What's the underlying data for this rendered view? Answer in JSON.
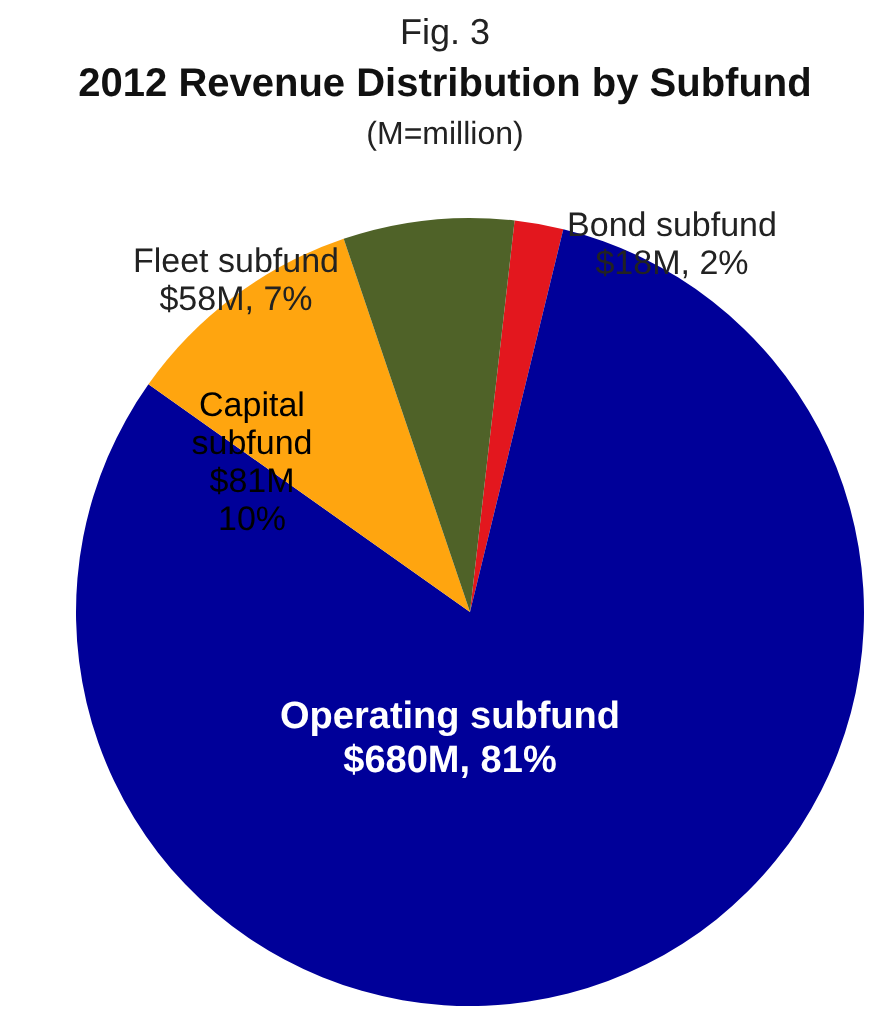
{
  "chart_data": {
    "type": "pie",
    "title": "2012 Revenue Distribution by Subfund",
    "subtitle": "(M=million)",
    "annotations": [
      "Fig. 3"
    ],
    "categories": [
      "Bond subfund",
      "Operating subfund",
      "Capital subfund",
      "Fleet subfund"
    ],
    "values": [
      2,
      81,
      10,
      7
    ],
    "colors": [
      "#e3171e",
      "#000099",
      "#ffa50f",
      "#4f6228"
    ],
    "value_labels": [
      "$18M, 2%",
      "$680M, 81%",
      "$81M 10%",
      "$58M, 7%"
    ]
  }
}
